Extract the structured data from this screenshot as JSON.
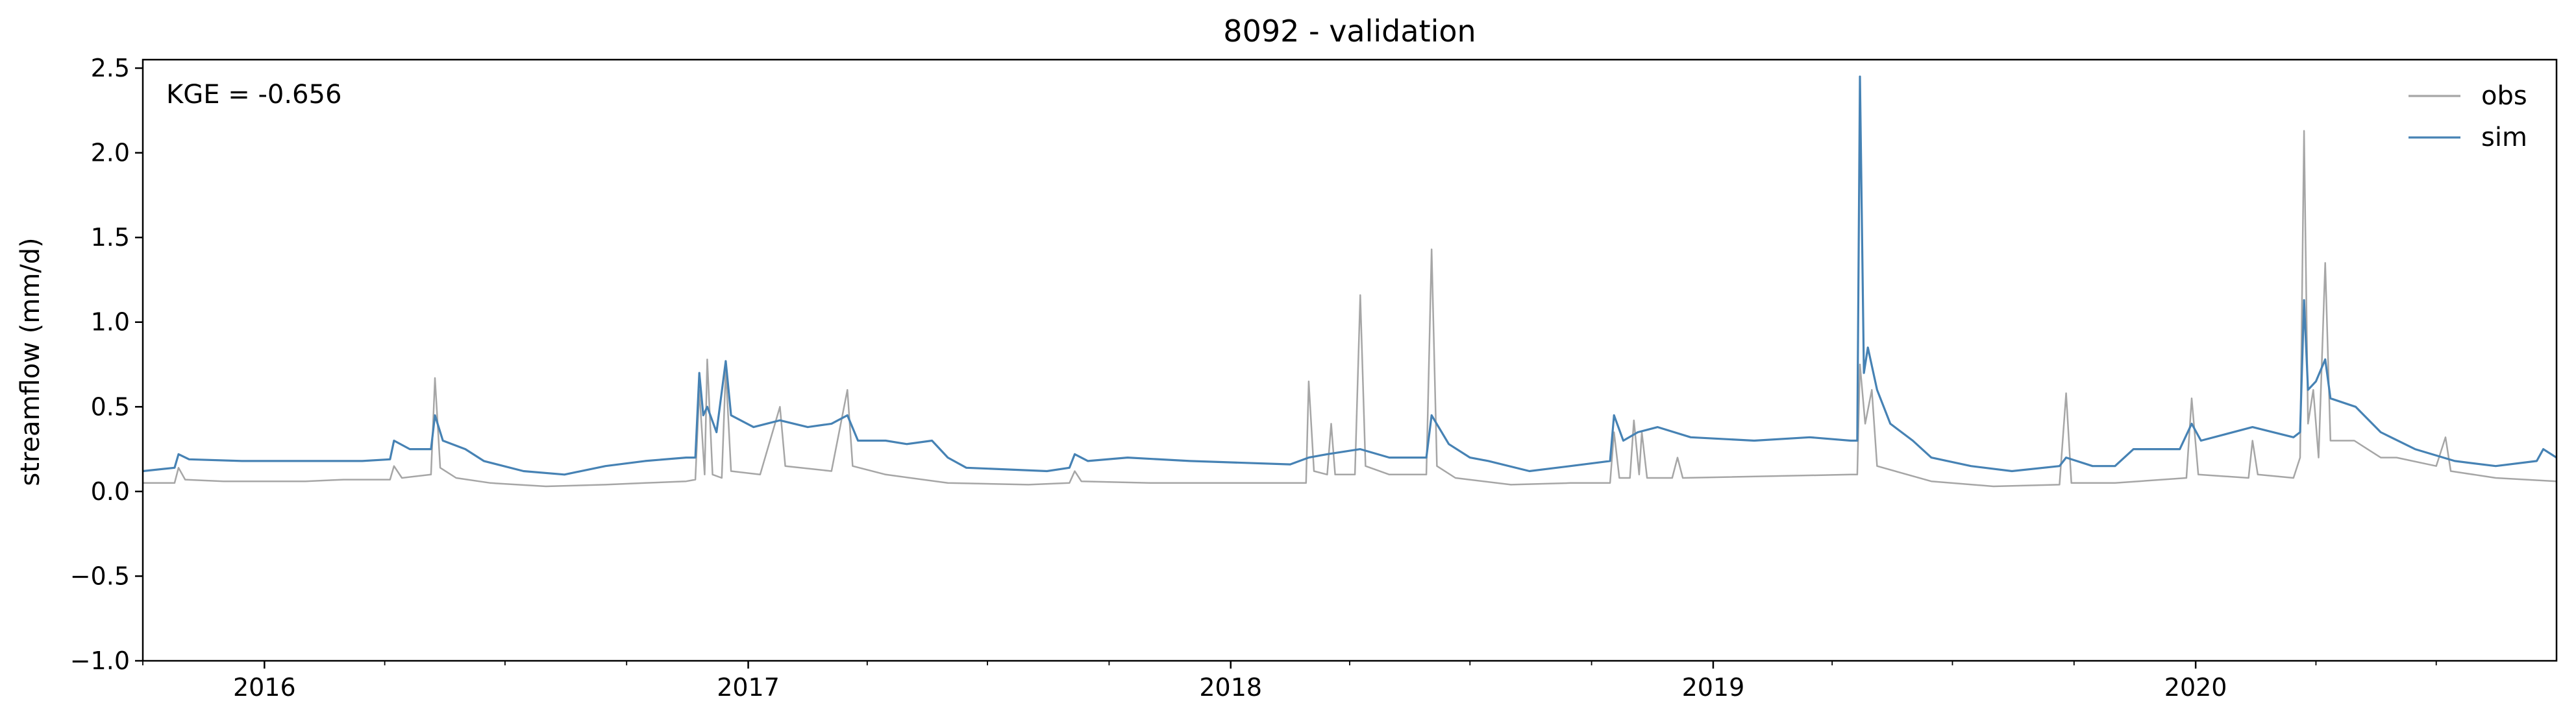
{
  "chart_data": {
    "type": "line",
    "title": "8092 - validation",
    "xlabel": "",
    "ylabel": "streamflow (mm/d)",
    "annotation": "KGE = -0.656",
    "xlim": [
      "2015-10-01",
      "2020-09-30"
    ],
    "ylim": [
      -1.0,
      2.55
    ],
    "yticks": [
      -1.0,
      -0.5,
      0.0,
      0.5,
      1.0,
      1.5,
      2.0,
      2.5
    ],
    "ytick_labels": [
      "−1.0",
      "−0.5",
      "0.0",
      "0.5",
      "1.0",
      "1.5",
      "2.0",
      "2.5"
    ],
    "xticks": [
      "2016-01-01",
      "2017-01-01",
      "2018-01-01",
      "2019-01-01",
      "2020-01-01"
    ],
    "xtick_labels": [
      "2016",
      "2017",
      "2018",
      "2019",
      "2020"
    ],
    "legend_position": "top-right",
    "grid": false,
    "series": [
      {
        "name": "obs",
        "color": "#a6a6a6",
        "points": [
          [
            "2015-10-01",
            0.05
          ],
          [
            "2015-10-25",
            0.05
          ],
          [
            "2015-10-28",
            0.14
          ],
          [
            "2015-11-02",
            0.07
          ],
          [
            "2015-12-01",
            0.06
          ],
          [
            "2016-02-01",
            0.06
          ],
          [
            "2016-03-01",
            0.07
          ],
          [
            "2016-04-05",
            0.07
          ],
          [
            "2016-04-08",
            0.15
          ],
          [
            "2016-04-14",
            0.08
          ],
          [
            "2016-05-06",
            0.1
          ],
          [
            "2016-05-09",
            0.67
          ],
          [
            "2016-05-13",
            0.14
          ],
          [
            "2016-05-25",
            0.08
          ],
          [
            "2016-06-20",
            0.05
          ],
          [
            "2016-08-01",
            0.03
          ],
          [
            "2016-09-15",
            0.04
          ],
          [
            "2016-10-15",
            0.05
          ],
          [
            "2016-11-15",
            0.06
          ],
          [
            "2016-11-22",
            0.07
          ],
          [
            "2016-11-25",
            0.6
          ],
          [
            "2016-11-29",
            0.1
          ],
          [
            "2016-12-01",
            0.78
          ],
          [
            "2016-12-05",
            0.1
          ],
          [
            "2016-12-12",
            0.08
          ],
          [
            "2016-12-15",
            0.72
          ],
          [
            "2016-12-19",
            0.12
          ],
          [
            "2017-01-10",
            0.1
          ],
          [
            "2017-01-25",
            0.5
          ],
          [
            "2017-01-29",
            0.15
          ],
          [
            "2017-03-05",
            0.12
          ],
          [
            "2017-03-17",
            0.6
          ],
          [
            "2017-03-21",
            0.15
          ],
          [
            "2017-04-15",
            0.1
          ],
          [
            "2017-06-01",
            0.05
          ],
          [
            "2017-08-01",
            0.04
          ],
          [
            "2017-09-01",
            0.05
          ],
          [
            "2017-09-05",
            0.12
          ],
          [
            "2017-09-10",
            0.06
          ],
          [
            "2017-11-01",
            0.05
          ],
          [
            "2018-01-01",
            0.05
          ],
          [
            "2018-02-15",
            0.05
          ],
          [
            "2018-02-27",
            0.05
          ],
          [
            "2018-03-01",
            0.65
          ],
          [
            "2018-03-05",
            0.12
          ],
          [
            "2018-03-15",
            0.1
          ],
          [
            "2018-03-18",
            0.4
          ],
          [
            "2018-03-21",
            0.1
          ],
          [
            "2018-04-05",
            0.1
          ],
          [
            "2018-04-09",
            1.16
          ],
          [
            "2018-04-13",
            0.15
          ],
          [
            "2018-05-01",
            0.1
          ],
          [
            "2018-05-29",
            0.1
          ],
          [
            "2018-06-02",
            1.43
          ],
          [
            "2018-06-06",
            0.15
          ],
          [
            "2018-06-20",
            0.08
          ],
          [
            "2018-08-01",
            0.04
          ],
          [
            "2018-09-15",
            0.05
          ],
          [
            "2018-10-15",
            0.05
          ],
          [
            "2018-10-18",
            0.35
          ],
          [
            "2018-10-22",
            0.08
          ],
          [
            "2018-10-30",
            0.08
          ],
          [
            "2018-11-02",
            0.42
          ],
          [
            "2018-11-06",
            0.1
          ],
          [
            "2018-11-08",
            0.35
          ],
          [
            "2018-11-12",
            0.08
          ],
          [
            "2018-12-01",
            0.08
          ],
          [
            "2018-12-05",
            0.2
          ],
          [
            "2018-12-09",
            0.08
          ],
          [
            "2019-04-15",
            0.1
          ],
          [
            "2019-04-20",
            0.1
          ],
          [
            "2019-04-22",
            0.75
          ],
          [
            "2019-04-26",
            0.4
          ],
          [
            "2019-05-01",
            0.6
          ],
          [
            "2019-05-05",
            0.15
          ],
          [
            "2019-06-15",
            0.06
          ],
          [
            "2019-08-01",
            0.03
          ],
          [
            "2019-09-20",
            0.04
          ],
          [
            "2019-09-25",
            0.58
          ],
          [
            "2019-09-29",
            0.05
          ],
          [
            "2019-11-01",
            0.05
          ],
          [
            "2019-12-25",
            0.08
          ],
          [
            "2019-12-29",
            0.55
          ],
          [
            "2020-01-03",
            0.1
          ],
          [
            "2020-02-10",
            0.08
          ],
          [
            "2020-02-13",
            0.3
          ],
          [
            "2020-02-17",
            0.1
          ],
          [
            "2020-03-15",
            0.08
          ],
          [
            "2020-03-20",
            0.2
          ],
          [
            "2020-03-23",
            2.13
          ],
          [
            "2020-03-26",
            0.4
          ],
          [
            "2020-03-30",
            0.6
          ],
          [
            "2020-04-03",
            0.2
          ],
          [
            "2020-04-08",
            1.35
          ],
          [
            "2020-04-12",
            0.3
          ],
          [
            "2020-04-30",
            0.3
          ],
          [
            "2020-05-10",
            0.25
          ],
          [
            "2020-05-20",
            0.2
          ],
          [
            "2020-06-01",
            0.2
          ],
          [
            "2020-07-01",
            0.15
          ],
          [
            "2020-07-08",
            0.32
          ],
          [
            "2020-07-12",
            0.12
          ],
          [
            "2020-08-15",
            0.08
          ],
          [
            "2020-09-30",
            0.06
          ]
        ]
      },
      {
        "name": "sim",
        "color": "#4682b4",
        "points": [
          [
            "2015-10-01",
            0.12
          ],
          [
            "2015-10-25",
            0.14
          ],
          [
            "2015-10-28",
            0.22
          ],
          [
            "2015-11-05",
            0.19
          ],
          [
            "2015-12-15",
            0.18
          ],
          [
            "2016-03-15",
            0.18
          ],
          [
            "2016-04-05",
            0.19
          ],
          [
            "2016-04-08",
            0.3
          ],
          [
            "2016-04-20",
            0.25
          ],
          [
            "2016-05-06",
            0.25
          ],
          [
            "2016-05-09",
            0.45
          ],
          [
            "2016-05-15",
            0.3
          ],
          [
            "2016-06-01",
            0.25
          ],
          [
            "2016-06-15",
            0.18
          ],
          [
            "2016-07-15",
            0.12
          ],
          [
            "2016-08-15",
            0.1
          ],
          [
            "2016-09-15",
            0.15
          ],
          [
            "2016-10-15",
            0.18
          ],
          [
            "2016-11-15",
            0.2
          ],
          [
            "2016-11-22",
            0.2
          ],
          [
            "2016-11-25",
            0.7
          ],
          [
            "2016-11-28",
            0.45
          ],
          [
            "2016-12-01",
            0.5
          ],
          [
            "2016-12-08",
            0.35
          ],
          [
            "2016-12-15",
            0.77
          ],
          [
            "2016-12-19",
            0.45
          ],
          [
            "2017-01-05",
            0.38
          ],
          [
            "2017-01-25",
            0.42
          ],
          [
            "2017-02-15",
            0.38
          ],
          [
            "2017-03-05",
            0.4
          ],
          [
            "2017-03-17",
            0.45
          ],
          [
            "2017-03-25",
            0.3
          ],
          [
            "2017-04-15",
            0.3
          ],
          [
            "2017-05-01",
            0.28
          ],
          [
            "2017-05-20",
            0.3
          ],
          [
            "2017-06-01",
            0.2
          ],
          [
            "2017-06-15",
            0.14
          ],
          [
            "2017-08-15",
            0.12
          ],
          [
            "2017-09-01",
            0.14
          ],
          [
            "2017-09-05",
            0.22
          ],
          [
            "2017-09-15",
            0.18
          ],
          [
            "2017-10-15",
            0.2
          ],
          [
            "2017-12-01",
            0.18
          ],
          [
            "2018-02-15",
            0.16
          ],
          [
            "2018-03-01",
            0.2
          ],
          [
            "2018-03-15",
            0.22
          ],
          [
            "2018-04-09",
            0.25
          ],
          [
            "2018-05-01",
            0.2
          ],
          [
            "2018-05-29",
            0.2
          ],
          [
            "2018-06-02",
            0.45
          ],
          [
            "2018-06-15",
            0.28
          ],
          [
            "2018-07-01",
            0.2
          ],
          [
            "2018-07-15",
            0.18
          ],
          [
            "2018-08-15",
            0.12
          ],
          [
            "2018-09-15",
            0.15
          ],
          [
            "2018-10-15",
            0.18
          ],
          [
            "2018-10-18",
            0.45
          ],
          [
            "2018-10-25",
            0.3
          ],
          [
            "2018-11-05",
            0.35
          ],
          [
            "2018-11-20",
            0.38
          ],
          [
            "2018-12-15",
            0.32
          ],
          [
            "2019-02-01",
            0.3
          ],
          [
            "2019-03-15",
            0.32
          ],
          [
            "2019-04-15",
            0.3
          ],
          [
            "2019-04-20",
            0.3
          ],
          [
            "2019-04-22",
            2.45
          ],
          [
            "2019-04-25",
            0.7
          ],
          [
            "2019-04-28",
            0.85
          ],
          [
            "2019-05-05",
            0.6
          ],
          [
            "2019-05-15",
            0.4
          ],
          [
            "2019-06-01",
            0.3
          ],
          [
            "2019-06-15",
            0.2
          ],
          [
            "2019-07-15",
            0.15
          ],
          [
            "2019-08-15",
            0.12
          ],
          [
            "2019-09-20",
            0.15
          ],
          [
            "2019-09-25",
            0.2
          ],
          [
            "2019-10-15",
            0.15
          ],
          [
            "2019-11-01",
            0.15
          ],
          [
            "2019-11-15",
            0.25
          ],
          [
            "2019-12-20",
            0.25
          ],
          [
            "2019-12-29",
            0.4
          ],
          [
            "2020-01-05",
            0.3
          ],
          [
            "2020-02-13",
            0.38
          ],
          [
            "2020-03-15",
            0.32
          ],
          [
            "2020-03-20",
            0.35
          ],
          [
            "2020-03-23",
            1.13
          ],
          [
            "2020-03-26",
            0.6
          ],
          [
            "2020-04-01",
            0.65
          ],
          [
            "2020-04-08",
            0.78
          ],
          [
            "2020-04-12",
            0.55
          ],
          [
            "2020-05-01",
            0.5
          ],
          [
            "2020-05-20",
            0.35
          ],
          [
            "2020-06-15",
            0.25
          ],
          [
            "2020-07-15",
            0.18
          ],
          [
            "2020-08-15",
            0.15
          ],
          [
            "2020-09-15",
            0.18
          ],
          [
            "2020-09-20",
            0.25
          ],
          [
            "2020-09-30",
            0.2
          ]
        ]
      }
    ]
  }
}
